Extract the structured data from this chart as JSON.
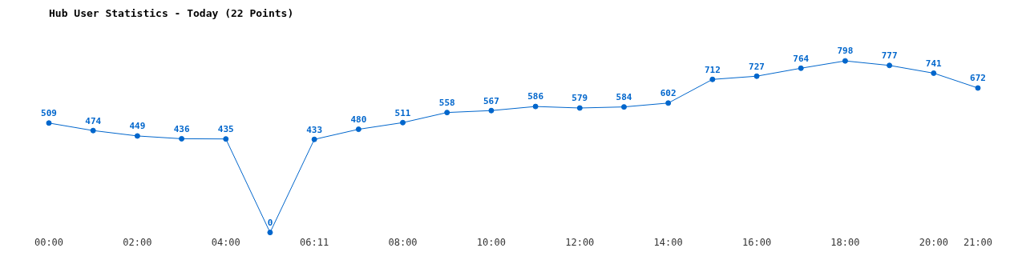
{
  "chart_data": {
    "type": "line",
    "title": "Hub User Statistics - Today (22 Points)",
    "categories": [
      "00:00",
      null,
      "02:00",
      null,
      "04:00",
      null,
      "06:11",
      null,
      "08:00",
      null,
      "10:00",
      null,
      "12:00",
      null,
      "14:00",
      null,
      "16:00",
      null,
      "18:00",
      null,
      "20:00",
      "21:00"
    ],
    "series": [
      {
        "color": "#0066cc",
        "values": [
          509,
          474,
          449,
          436,
          435,
          0,
          433,
          480,
          511,
          558,
          567,
          586,
          579,
          584,
          602,
          712,
          727,
          764,
          798,
          777,
          741,
          672
        ]
      }
    ],
    "data_labels": true,
    "marker": "circle",
    "line_style": "solid",
    "grid": false,
    "legend": false
  }
}
